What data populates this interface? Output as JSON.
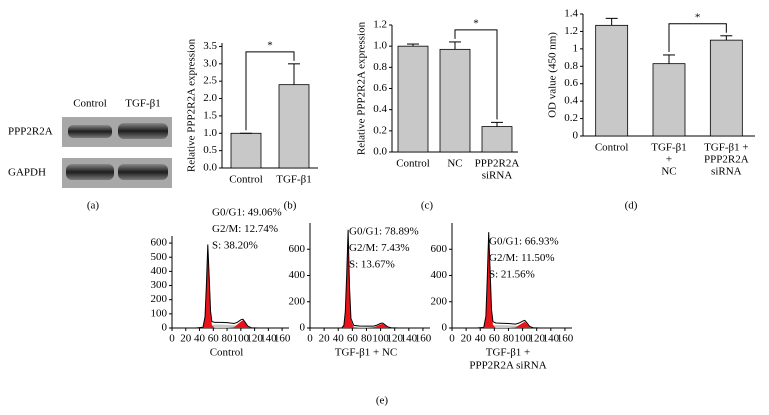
{
  "western_blot": {
    "lanes": [
      "Control",
      "TGF-β1"
    ],
    "bands": [
      "PPP2R2A",
      "GAPDH"
    ]
  },
  "panel_labels": [
    "(a)",
    "(b)",
    "(c)",
    "(d)",
    "(e)"
  ],
  "chart_data": [
    {
      "type": "bar",
      "ylabel": "Relative PPP2R2A expression",
      "categories": [
        "Control",
        "TGF-β1"
      ],
      "values": [
        1.0,
        2.4
      ],
      "errors": [
        0,
        0.6
      ],
      "color": "#c8c8c8",
      "ylim": [
        0,
        3.6
      ],
      "yticks": [
        {
          "value": 0,
          "label": "0.0"
        },
        0.5,
        {
          "value": 1,
          "label": "1.0"
        },
        1.5,
        {
          "value": 2,
          "label": "2.0"
        },
        2.5,
        {
          "value": 3,
          "label": "3.0"
        },
        3.5
      ],
      "annotations": [
        {
          "text": "*",
          "between": [
            0,
            1
          ]
        }
      ]
    },
    {
      "type": "bar",
      "ylabel": "Relative PPP2R2A expression",
      "categories": [
        "Control",
        "NC",
        [
          "PPP2R2A",
          "siRNA"
        ]
      ],
      "values": [
        1.0,
        0.97,
        0.24
      ],
      "errors": [
        0.02,
        0.07,
        0.04
      ],
      "color": "#c8c8c8",
      "ylim": [
        0,
        1.2
      ],
      "yticks": [
        {
          "value": 0,
          "label": "0.0"
        },
        0.2,
        0.4,
        0.6,
        0.8,
        {
          "value": 1,
          "label": "1.0"
        },
        1.2
      ],
      "annotations": [
        {
          "text": "*",
          "between": [
            1,
            2
          ]
        }
      ]
    },
    {
      "type": "bar",
      "ylabel": "OD value (450 nm)",
      "categories": [
        "Control",
        [
          "TGF-β1",
          "+",
          "NC"
        ],
        [
          "TGF-β1 +",
          "PPP2R2A",
          "siRNA"
        ]
      ],
      "values": [
        1.27,
        0.83,
        1.1
      ],
      "errors": [
        0.08,
        0.1,
        0.05
      ],
      "color": "#c8c8c8",
      "ylim": [
        0,
        1.4
      ],
      "yticks": [
        0,
        0.2,
        0.4,
        0.6,
        0.8,
        1,
        1.2,
        1.4
      ],
      "annotations": [
        {
          "text": "*",
          "between": [
            1,
            2
          ]
        }
      ]
    },
    {
      "type": "area",
      "xlabel": [
        "Control"
      ],
      "annotation_lines": [
        "G0/G1: 49.06%",
        "G2/M: 12.74%",
        "S: 38.20%"
      ],
      "x": [
        35,
        45,
        48,
        50,
        52,
        54,
        56,
        58,
        62,
        70,
        80,
        90,
        95,
        100,
        103,
        106,
        110,
        115,
        125
      ],
      "series": [
        {
          "color": "#c8c8c8",
          "values": [
            0,
            0,
            0,
            5,
            10,
            15,
            20,
            22,
            25,
            25,
            22,
            20,
            18,
            15,
            12,
            8,
            4,
            0,
            0
          ]
        },
        {
          "color": "#e8141a",
          "values": [
            0,
            5,
            80,
            300,
            580,
            350,
            100,
            20,
            0,
            0,
            0,
            0,
            0,
            0,
            0,
            0,
            0,
            0,
            0
          ]
        },
        {
          "color": "#e8141a",
          "values": [
            0,
            0,
            0,
            0,
            0,
            0,
            0,
            0,
            0,
            0,
            0,
            5,
            25,
            45,
            55,
            38,
            10,
            0,
            0
          ]
        }
      ],
      "outline": {
        "color": "#000000",
        "values": [
          0,
          5,
          80,
          305,
          590,
          365,
          120,
          45,
          40,
          40,
          38,
          32,
          40,
          58,
          62,
          42,
          14,
          2,
          0
        ]
      },
      "xlim": [
        0,
        170
      ],
      "xticks": [
        0,
        20,
        40,
        60,
        80,
        100,
        120,
        140,
        160
      ],
      "ylim": [
        0,
        650
      ],
      "yticks": [
        0,
        100,
        200,
        300,
        400,
        500,
        600
      ]
    },
    {
      "type": "area",
      "xlabel": [
        "TGF-β1 + NC"
      ],
      "annotation_lines": [
        "G0/G1: 78.89%",
        "G2/M: 7.43%",
        "S: 13.67%"
      ],
      "x": [
        35,
        45,
        48,
        50,
        52,
        54,
        56,
        58,
        62,
        70,
        80,
        90,
        95,
        100,
        103,
        106,
        110,
        115,
        125
      ],
      "series": [
        {
          "color": "#c8c8c8",
          "values": [
            0,
            0,
            0,
            3,
            6,
            8,
            10,
            10,
            10,
            10,
            9,
            8,
            6,
            5,
            4,
            3,
            2,
            0,
            0
          ]
        },
        {
          "color": "#e8141a",
          "values": [
            0,
            0,
            20,
            120,
            400,
            740,
            300,
            60,
            5,
            0,
            0,
            0,
            0,
            0,
            0,
            0,
            0,
            0,
            0
          ]
        },
        {
          "color": "#e8141a",
          "values": [
            0,
            0,
            0,
            0,
            0,
            0,
            0,
            0,
            0,
            0,
            0,
            5,
            15,
            28,
            32,
            22,
            6,
            0,
            0
          ]
        }
      ],
      "outline": {
        "color": "#000000",
        "values": [
          0,
          0,
          20,
          123,
          406,
          748,
          310,
          72,
          20,
          15,
          14,
          14,
          22,
          35,
          38,
          26,
          9,
          2,
          0
        ]
      },
      "xlim": [
        0,
        170
      ],
      "xticks": [
        0,
        20,
        40,
        60,
        80,
        100,
        120,
        140,
        160
      ],
      "ylim": [
        0,
        800
      ],
      "yticks": [
        0,
        200,
        400,
        600
      ]
    },
    {
      "type": "area",
      "xlabel": [
        "TGF-β1 +",
        "PPP2R2A siRNA"
      ],
      "annotation_lines": [
        "G0/G1: 66.93%",
        "G2/M: 11.50%",
        "S: 21.56%"
      ],
      "x": [
        35,
        45,
        48,
        50,
        52,
        54,
        56,
        58,
        62,
        70,
        80,
        90,
        95,
        100,
        103,
        106,
        110,
        115,
        125
      ],
      "series": [
        {
          "color": "#c8c8c8",
          "values": [
            0,
            0,
            0,
            5,
            10,
            14,
            18,
            20,
            22,
            22,
            20,
            18,
            15,
            12,
            10,
            6,
            3,
            0,
            0
          ]
        },
        {
          "color": "#e8141a",
          "values": [
            0,
            5,
            90,
            380,
            720,
            420,
            120,
            25,
            0,
            0,
            0,
            0,
            0,
            0,
            0,
            0,
            0,
            0,
            0
          ]
        },
        {
          "color": "#e8141a",
          "values": [
            0,
            0,
            0,
            0,
            0,
            0,
            0,
            0,
            0,
            0,
            0,
            5,
            22,
            38,
            48,
            32,
            8,
            0,
            0
          ]
        }
      ],
      "outline": {
        "color": "#000000",
        "values": [
          0,
          5,
          90,
          385,
          730,
          434,
          140,
          48,
          38,
          36,
          34,
          30,
          38,
          52,
          58,
          40,
          12,
          2,
          0
        ]
      },
      "xlim": [
        0,
        170
      ],
      "xticks": [
        0,
        20,
        40,
        60,
        80,
        100,
        120,
        140,
        160
      ],
      "ylim": [
        0,
        800
      ],
      "yticks": [
        0,
        200,
        400,
        600
      ]
    }
  ]
}
